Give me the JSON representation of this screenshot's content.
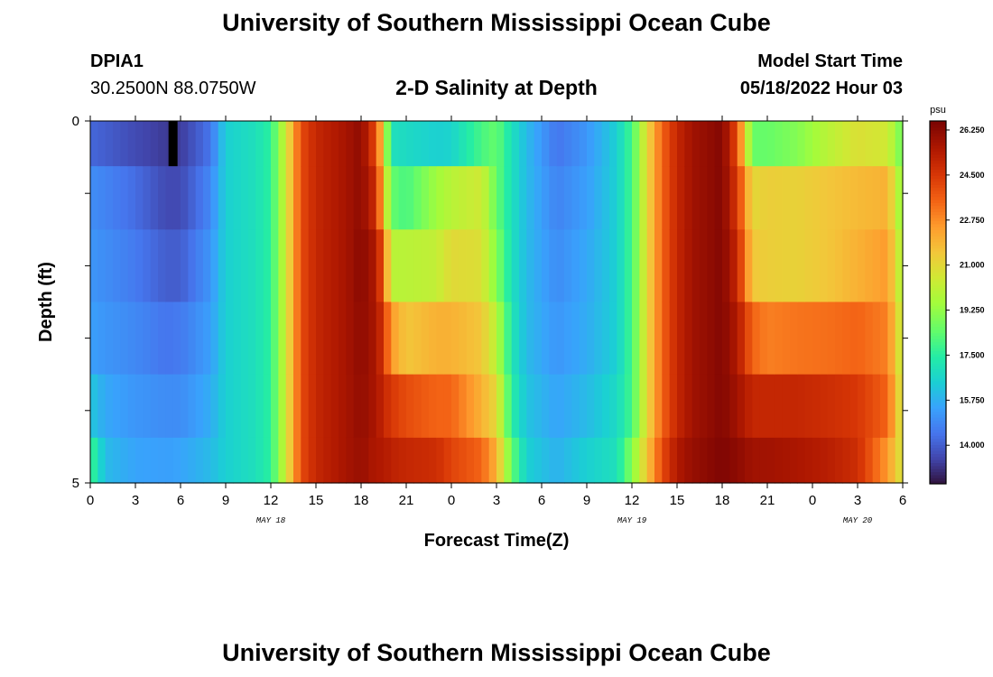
{
  "page": {
    "title": "University of Southern Mississippi Ocean Cube",
    "station_id": "DPIA1",
    "station_coords": "30.2500N  88.0750W",
    "plot_title": "2-D Salinity at Depth",
    "model_start_label": "Model Start Time",
    "model_start_value": "05/18/2022 Hour 03",
    "footer_title": "University of Southern Mississippi Ocean Cube"
  },
  "chart_data": {
    "type": "heatmap",
    "title": "2-D Salinity at Depth",
    "xlabel": "Forecast Time(Z)",
    "ylabel": "Depth (ft)",
    "x_range_hours": [
      0,
      54
    ],
    "y_range": [
      0,
      5
    ],
    "x_tick_labels": [
      "0",
      "3",
      "6",
      "9",
      "12",
      "15",
      "18",
      "21",
      "0",
      "3",
      "6",
      "9",
      "12",
      "15",
      "18",
      "21",
      "0",
      "3",
      "6"
    ],
    "y_tick_labels": [
      "0",
      "5"
    ],
    "date_labels": [
      {
        "text": "MAY 18",
        "hour": 12
      },
      {
        "text": "MAY 19",
        "hour": 36
      },
      {
        "text": "MAY 20",
        "hour": 51
      }
    ],
    "depth_layers": [
      0.25,
      1.0,
      2.0,
      3.0,
      4.0,
      4.75
    ],
    "missing_cell": {
      "hour": 5.5,
      "layer": 0
    },
    "colorbar": {
      "unit": "psu",
      "min": 12.5,
      "max": 26.6,
      "ticks": [
        "26.250",
        "24.500",
        "22.750",
        "21.000",
        "19.250",
        "17.500",
        "15.750",
        "14.000"
      ]
    },
    "salinity_profile": [
      {
        "hour": 0,
        "values": [
          14.2,
          15.0,
          15.2,
          15.4,
          16.3,
          18.0
        ]
      },
      {
        "hour": 1,
        "values": [
          14.0,
          14.8,
          15.0,
          15.2,
          15.6,
          16.0
        ]
      },
      {
        "hour": 3,
        "values": [
          13.6,
          14.3,
          14.6,
          14.9,
          15.2,
          15.5
        ]
      },
      {
        "hour": 5,
        "values": [
          13.3,
          13.6,
          14.0,
          14.5,
          15.0,
          15.4
        ]
      },
      {
        "hour": 6,
        "values": [
          13.3,
          13.6,
          14.0,
          14.6,
          15.0,
          15.5
        ]
      },
      {
        "hour": 8,
        "values": [
          14.5,
          14.9,
          15.2,
          15.4,
          15.7,
          16.0
        ]
      },
      {
        "hour": 9,
        "values": [
          16.5,
          16.5,
          16.5,
          16.5,
          16.5,
          16.5
        ]
      },
      {
        "hour": 11,
        "values": [
          17.0,
          17.0,
          17.0,
          17.0,
          17.0,
          17.0
        ]
      },
      {
        "hour": 12,
        "values": [
          17.6,
          17.6,
          17.6,
          17.6,
          17.6,
          17.6
        ]
      },
      {
        "hour": 13,
        "values": [
          20.5,
          20.5,
          20.5,
          20.5,
          20.5,
          20.5
        ]
      },
      {
        "hour": 14,
        "values": [
          24.0,
          24.0,
          24.0,
          24.0,
          24.0,
          24.0
        ]
      },
      {
        "hour": 15,
        "values": [
          25.0,
          25.0,
          25.0,
          25.0,
          25.0,
          25.0
        ]
      },
      {
        "hour": 17,
        "values": [
          25.7,
          25.7,
          25.7,
          25.7,
          25.7,
          25.7
        ]
      },
      {
        "hour": 18,
        "values": [
          26.2,
          26.2,
          26.3,
          26.2,
          26.1,
          26.0
        ]
      },
      {
        "hour": 19,
        "values": [
          24.0,
          24.8,
          25.5,
          25.6,
          25.6,
          25.5
        ]
      },
      {
        "hour": 19.5,
        "values": [
          21.0,
          21.5,
          23.5,
          24.5,
          25.0,
          25.5
        ]
      },
      {
        "hour": 20,
        "values": [
          17.0,
          18.5,
          20.0,
          22.5,
          24.5,
          25.2
        ]
      },
      {
        "hour": 21,
        "values": [
          16.8,
          18.0,
          20.0,
          21.5,
          24.0,
          25.0
        ]
      },
      {
        "hour": 23,
        "values": [
          16.5,
          19.5,
          20.2,
          22.0,
          23.5,
          24.8
        ]
      },
      {
        "hour": 24,
        "values": [
          16.6,
          20.0,
          21.0,
          22.0,
          23.5,
          24.2
        ]
      },
      {
        "hour": 26,
        "values": [
          18.0,
          20.5,
          20.8,
          21.5,
          22.0,
          23.5
        ]
      },
      {
        "hour": 27,
        "values": [
          18.5,
          18.5,
          19.0,
          20.0,
          21.0,
          22.0
        ]
      },
      {
        "hour": 28,
        "values": [
          17.0,
          17.0,
          17.0,
          17.2,
          17.5,
          18.5
        ]
      },
      {
        "hour": 29,
        "values": [
          16.0,
          16.0,
          16.0,
          16.0,
          16.2,
          16.5
        ]
      },
      {
        "hour": 31,
        "values": [
          14.5,
          14.8,
          15.0,
          15.2,
          15.5,
          15.8
        ]
      },
      {
        "hour": 33,
        "values": [
          15.2,
          15.4,
          15.6,
          15.7,
          16.0,
          16.5
        ]
      },
      {
        "hour": 35,
        "values": [
          16.5,
          16.5,
          16.5,
          16.5,
          16.8,
          17.0
        ]
      },
      {
        "hour": 36,
        "values": [
          18.0,
          18.0,
          18.0,
          18.0,
          18.0,
          19.0
        ]
      },
      {
        "hour": 37,
        "values": [
          21.0,
          21.0,
          21.0,
          21.0,
          21.0,
          21.5
        ]
      },
      {
        "hour": 38,
        "values": [
          23.5,
          23.5,
          23.5,
          23.5,
          23.5,
          24.0
        ]
      },
      {
        "hour": 39,
        "values": [
          25.0,
          25.0,
          25.0,
          25.0,
          25.0,
          25.5
        ]
      },
      {
        "hour": 40,
        "values": [
          25.8,
          25.8,
          25.8,
          25.8,
          25.8,
          26.0
        ]
      },
      {
        "hour": 42,
        "values": [
          26.4,
          26.4,
          26.4,
          26.4,
          26.4,
          26.5
        ]
      },
      {
        "hour": 43,
        "values": [
          24.0,
          24.5,
          25.0,
          25.5,
          25.8,
          26.2
        ]
      },
      {
        "hour": 44,
        "values": [
          18.5,
          21.0,
          21.5,
          23.5,
          25.0,
          25.8
        ]
      },
      {
        "hour": 45,
        "values": [
          18.5,
          21.3,
          21.3,
          23.0,
          25.0,
          25.8
        ]
      },
      {
        "hour": 47,
        "values": [
          19.0,
          21.2,
          21.2,
          23.2,
          25.0,
          25.6
        ]
      },
      {
        "hour": 49,
        "values": [
          20.0,
          21.5,
          21.5,
          23.3,
          24.8,
          25.3
        ]
      },
      {
        "hour": 51,
        "values": [
          20.8,
          21.8,
          22.0,
          23.5,
          24.5,
          24.8
        ]
      },
      {
        "hour": 53,
        "values": [
          20.5,
          22.0,
          22.5,
          23.0,
          23.5,
          22.5
        ]
      },
      {
        "hour": 54,
        "values": [
          18.5,
          19.0,
          19.5,
          20.0,
          20.3,
          20.5
        ]
      }
    ]
  }
}
